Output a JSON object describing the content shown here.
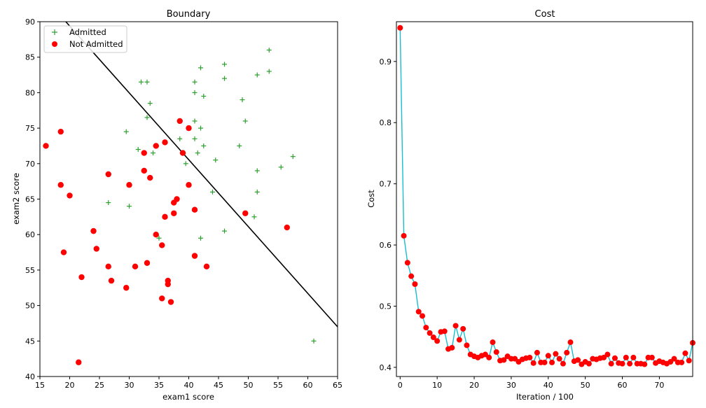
{
  "chart_data": [
    {
      "type": "scatter",
      "title": "Boundary",
      "xlabel": "exam1 score",
      "ylabel": "exam2 score",
      "xlim": [
        15,
        65
      ],
      "ylim": [
        40,
        90
      ],
      "xticks": [
        "15",
        "20",
        "25",
        "30",
        "35",
        "40",
        "45",
        "50",
        "55",
        "60",
        "65"
      ],
      "yticks": [
        "40",
        "45",
        "50",
        "55",
        "60",
        "65",
        "70",
        "75",
        "80",
        "85",
        "90"
      ],
      "legend_position": "top-left",
      "series": [
        {
          "name": "Admitted",
          "marker": "plus",
          "color": "#2ca02c",
          "points": [
            [
              53.5,
              86
            ],
            [
              46,
              84
            ],
            [
              42,
              83.5
            ],
            [
              51.5,
              82.5
            ],
            [
              53.5,
              83
            ],
            [
              32,
              81.5
            ],
            [
              33,
              81.5
            ],
            [
              46,
              82
            ],
            [
              41,
              81.5
            ],
            [
              41,
              80
            ],
            [
              42.5,
              79.5
            ],
            [
              49,
              79
            ],
            [
              33.5,
              78.5
            ],
            [
              33,
              76.5
            ],
            [
              41,
              76
            ],
            [
              49.5,
              76
            ],
            [
              29.5,
              74.5
            ],
            [
              42,
              75
            ],
            [
              38.5,
              73.5
            ],
            [
              41,
              73.5
            ],
            [
              48.5,
              72.5
            ],
            [
              42.5,
              72.5
            ],
            [
              31.5,
              72
            ],
            [
              34,
              71.5
            ],
            [
              41.5,
              71.5
            ],
            [
              57.5,
              71
            ],
            [
              44.5,
              70.5
            ],
            [
              39.5,
              70
            ],
            [
              55.5,
              69.5
            ],
            [
              51.5,
              69
            ],
            [
              44,
              66
            ],
            [
              51.5,
              66
            ],
            [
              26.5,
              64.5
            ],
            [
              30,
              64
            ],
            [
              51,
              62.5
            ],
            [
              46,
              60.5
            ],
            [
              42,
              59.5
            ],
            [
              35,
              59.5
            ],
            [
              61,
              45
            ]
          ]
        },
        {
          "name": "Not Admitted",
          "marker": "circle",
          "color": "#ff0000",
          "points": [
            [
              16,
              72.5
            ],
            [
              18.5,
              74.5
            ],
            [
              38.5,
              76
            ],
            [
              40,
              75
            ],
            [
              36,
              73
            ],
            [
              34.5,
              72.5
            ],
            [
              32.5,
              71.5
            ],
            [
              39,
              71.5
            ],
            [
              26.5,
              68.5
            ],
            [
              32.5,
              69
            ],
            [
              33.5,
              68
            ],
            [
              18.5,
              67
            ],
            [
              30,
              67
            ],
            [
              40,
              67
            ],
            [
              20,
              65.5
            ],
            [
              38,
              65
            ],
            [
              37.5,
              64.5
            ],
            [
              41,
              63.5
            ],
            [
              37.5,
              63
            ],
            [
              49.5,
              63
            ],
            [
              36,
              62.5
            ],
            [
              56.5,
              61
            ],
            [
              24,
              60.5
            ],
            [
              34.5,
              60
            ],
            [
              35.5,
              58.5
            ],
            [
              19,
              57.5
            ],
            [
              24.5,
              58
            ],
            [
              41,
              57
            ],
            [
              33,
              56
            ],
            [
              26.5,
              55.5
            ],
            [
              31,
              55.5
            ],
            [
              43,
              55.5
            ],
            [
              22,
              54
            ],
            [
              27,
              53.5
            ],
            [
              36.5,
              53.5
            ],
            [
              36.5,
              53
            ],
            [
              29.5,
              52.5
            ],
            [
              35.5,
              51
            ],
            [
              37,
              50.5
            ],
            [
              21.5,
              42
            ]
          ]
        },
        {
          "name": "",
          "type": "line",
          "color": "#000000",
          "points": [
            [
              19.35,
              90
            ],
            [
              65,
              47
            ]
          ]
        }
      ]
    },
    {
      "type": "line",
      "title": "Cost",
      "xlabel": "Iteration / 100",
      "ylabel": "Cost",
      "xlim": [
        -1,
        79
      ],
      "ylim": [
        0.385,
        0.965
      ],
      "xticks": [
        "0",
        "10",
        "20",
        "30",
        "40",
        "50",
        "60",
        "70"
      ],
      "yticks": [
        "0.4",
        "0.5",
        "0.6",
        "0.7",
        "0.8",
        "0.9"
      ],
      "line_color": "#17becf",
      "marker_color": "#ff0000",
      "x": [
        0,
        1,
        2,
        3,
        4,
        5,
        6,
        7,
        8,
        9,
        10,
        11,
        12,
        13,
        14,
        15,
        16,
        17,
        18,
        19,
        20,
        21,
        22,
        23,
        24,
        25,
        26,
        27,
        28,
        29,
        30,
        31,
        32,
        33,
        34,
        35,
        36,
        37,
        38,
        39,
        40,
        41,
        42,
        43,
        44,
        45,
        46,
        47,
        48,
        49,
        50,
        51,
        52,
        53,
        54,
        55,
        56,
        57,
        58,
        59,
        60,
        61,
        62,
        63,
        64,
        65,
        66,
        67,
        68,
        69,
        70,
        71,
        72,
        73,
        74,
        75,
        76,
        77,
        78,
        79
      ],
      "values": [
        0.955,
        0.615,
        0.571,
        0.549,
        0.536,
        0.491,
        0.484,
        0.465,
        0.456,
        0.449,
        0.443,
        0.458,
        0.459,
        0.43,
        0.432,
        0.468,
        0.445,
        0.463,
        0.436,
        0.421,
        0.418,
        0.416,
        0.419,
        0.421,
        0.416,
        0.441,
        0.425,
        0.411,
        0.412,
        0.418,
        0.414,
        0.414,
        0.409,
        0.413,
        0.415,
        0.416,
        0.407,
        0.424,
        0.408,
        0.408,
        0.419,
        0.408,
        0.422,
        0.414,
        0.406,
        0.424,
        0.441,
        0.41,
        0.412,
        0.405,
        0.409,
        0.406,
        0.414,
        0.413,
        0.415,
        0.416,
        0.421,
        0.406,
        0.415,
        0.407,
        0.406,
        0.416,
        0.406,
        0.416,
        0.406,
        0.406,
        0.405,
        0.416,
        0.416,
        0.407,
        0.41,
        0.408,
        0.406,
        0.409,
        0.414,
        0.408,
        0.408,
        0.423,
        0.411,
        0.44
      ]
    }
  ]
}
